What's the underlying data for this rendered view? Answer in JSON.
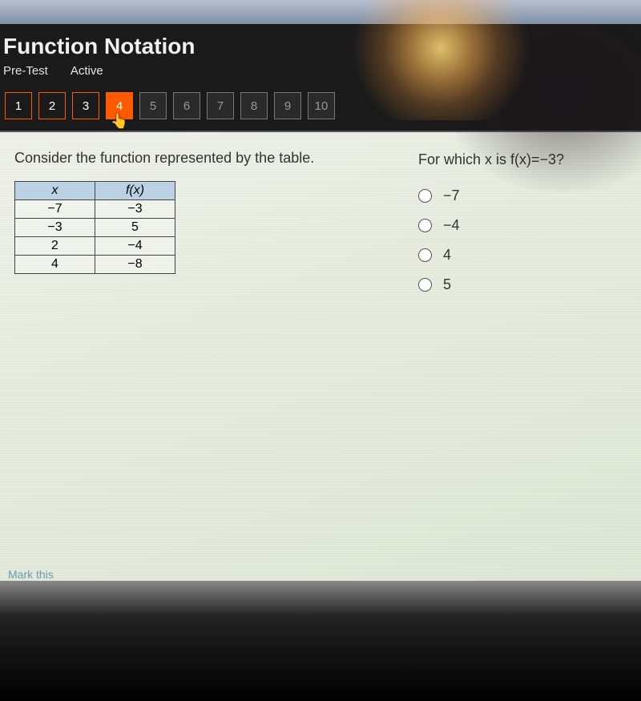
{
  "header": {
    "title": "Function Notation",
    "tabs": {
      "pretest": "Pre-Test",
      "active": "Active"
    }
  },
  "nav": {
    "items": [
      {
        "n": "1",
        "state": "answered"
      },
      {
        "n": "2",
        "state": "answered"
      },
      {
        "n": "3",
        "state": "answered"
      },
      {
        "n": "4",
        "state": "current"
      },
      {
        "n": "5",
        "state": "locked"
      },
      {
        "n": "6",
        "state": "locked"
      },
      {
        "n": "7",
        "state": "locked"
      },
      {
        "n": "8",
        "state": "locked"
      },
      {
        "n": "9",
        "state": "locked"
      },
      {
        "n": "10",
        "state": "locked"
      }
    ]
  },
  "content": {
    "prompt": "Consider the function represented by the table.",
    "question": "For which x is f(x)=−3?",
    "table": {
      "type": "table",
      "columns": [
        "x",
        "f(x)"
      ],
      "rows": [
        [
          "−7",
          "−3"
        ],
        [
          "−3",
          "5"
        ],
        [
          "2",
          "−4"
        ],
        [
          "4",
          "−8"
        ]
      ],
      "header_bg": "#bdd4e7",
      "border_color": "#444444",
      "cell_bg": "rgba(255,255,255,0.35)",
      "fontsize": 16
    },
    "options": [
      "−7",
      "−4",
      "4",
      "5"
    ]
  },
  "footer": {
    "mark": "Mark this"
  },
  "colors": {
    "header_bg": "#1a1a1a",
    "accent": "#ff5a00",
    "content_bg": "#f0f2ea",
    "text": "#333333"
  }
}
